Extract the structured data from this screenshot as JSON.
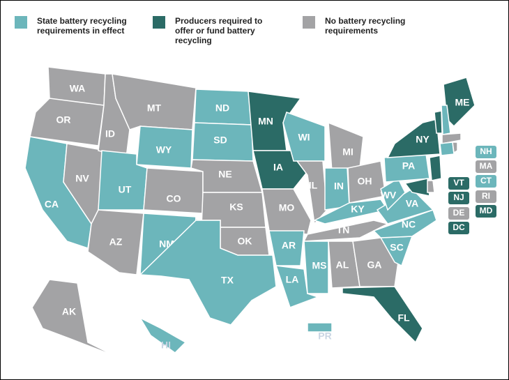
{
  "legend": [
    {
      "label": "State battery recycling\nrequirements in effect",
      "color": "#6cb6bb"
    },
    {
      "label": "Producers required to\noffer or fund battery\nrecycling",
      "color": "#2b6b66"
    },
    {
      "label": "No battery recycling\nrequirements",
      "color": "#a3a3a5"
    }
  ],
  "states": [
    {
      "label": "WA",
      "category": 2
    },
    {
      "label": "OR",
      "category": 2
    },
    {
      "label": "CA",
      "category": 0
    },
    {
      "label": "NV",
      "category": 2
    },
    {
      "label": "ID",
      "category": 2
    },
    {
      "label": "MT",
      "category": 2
    },
    {
      "label": "WY",
      "category": 0
    },
    {
      "label": "UT",
      "category": 0
    },
    {
      "label": "AZ",
      "category": 2
    },
    {
      "label": "CO",
      "category": 2
    },
    {
      "label": "NM",
      "category": 0
    },
    {
      "label": "ND",
      "category": 0
    },
    {
      "label": "SD",
      "category": 0
    },
    {
      "label": "NE",
      "category": 2
    },
    {
      "label": "KS",
      "category": 2
    },
    {
      "label": "OK",
      "category": 2
    },
    {
      "label": "TX",
      "category": 0
    },
    {
      "label": "MN",
      "category": 1
    },
    {
      "label": "IA",
      "category": 1
    },
    {
      "label": "MO",
      "category": 2
    },
    {
      "label": "AR",
      "category": 0
    },
    {
      "label": "LA",
      "category": 0
    },
    {
      "label": "WI",
      "category": 0
    },
    {
      "label": "IL",
      "category": 2
    },
    {
      "label": "MI",
      "category": 2
    },
    {
      "label": "IN",
      "category": 0
    },
    {
      "label": "OH",
      "category": 2
    },
    {
      "label": "KY",
      "category": 0
    },
    {
      "label": "TN",
      "category": 2
    },
    {
      "label": "MS",
      "category": 0
    },
    {
      "label": "AL",
      "category": 2
    },
    {
      "label": "GA",
      "category": 2
    },
    {
      "label": "FL",
      "category": 1
    },
    {
      "label": "SC",
      "category": 0
    },
    {
      "label": "NC",
      "category": 0
    },
    {
      "label": "VA",
      "category": 0
    },
    {
      "label": "WV",
      "category": 0
    },
    {
      "label": "PA",
      "category": 0
    },
    {
      "label": "NY",
      "category": 1
    },
    {
      "label": "ME",
      "category": 1
    },
    {
      "label": "AK",
      "category": 2
    },
    {
      "label": "HI",
      "category": 0
    },
    {
      "label": "PR",
      "category": 0
    },
    {
      "label": "NH",
      "category": 0
    },
    {
      "label": "MA",
      "category": 2
    },
    {
      "label": "CT",
      "category": 0
    },
    {
      "label": "RI",
      "category": 2
    },
    {
      "label": "MD",
      "category": 1
    },
    {
      "label": "VT",
      "category": 1
    },
    {
      "label": "NJ",
      "category": 1
    },
    {
      "label": "DE",
      "category": 2
    },
    {
      "label": "DC",
      "category": 1
    }
  ]
}
